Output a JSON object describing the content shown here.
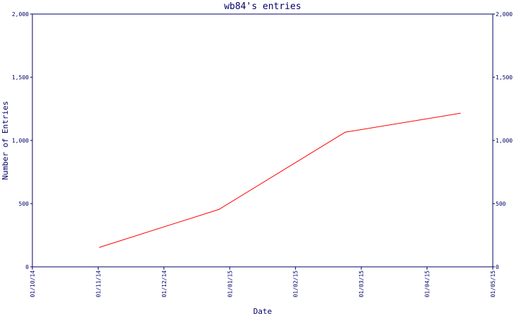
{
  "chart_data": {
    "type": "line",
    "title": "wb84's entries",
    "xlabel": "Date",
    "ylabel": "Number of Entries",
    "x_ticks": [
      "01/10/14",
      "01/11/14",
      "01/12/14",
      "01/01/15",
      "01/02/15",
      "01/03/15",
      "01/04/15",
      "01/05/15"
    ],
    "y_ticks": [
      "0",
      "500",
      "1,000",
      "1,500",
      "2,000"
    ],
    "ylim": [
      0,
      2000
    ],
    "xlim": [
      "2014-10-01",
      "2015-05-01"
    ],
    "grid": false,
    "colors": {
      "axis": "#000066",
      "line": "#ff0000"
    },
    "series": [
      {
        "x": [
          "2014-11-01",
          "2014-12-26",
          "2015-02-22",
          "2015-04-16"
        ],
        "y": [
          155,
          455,
          1065,
          1215
        ]
      }
    ]
  }
}
